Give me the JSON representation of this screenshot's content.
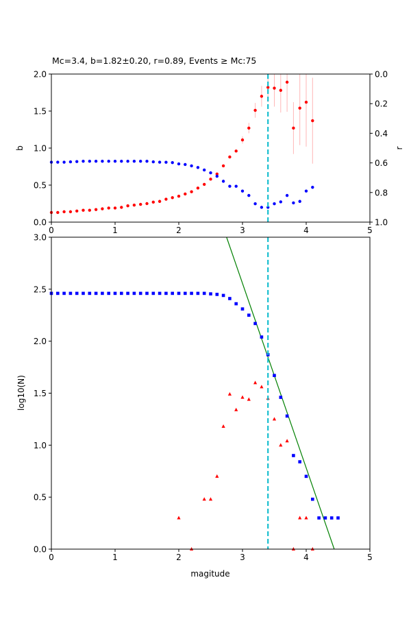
{
  "chart_data": [
    {
      "type": "scatter",
      "title": "Mc=3.4, b=1.82±0.20, r=0.89, Events ≥ Mc:75",
      "xlabel": "",
      "ylabel": "b",
      "ylabel_right": "r",
      "xlim": [
        0,
        5
      ],
      "ylim": [
        0,
        2
      ],
      "ylim_right": [
        1,
        0
      ],
      "right_axis_inverted": true,
      "x_ticks": [
        "0",
        "1",
        "2",
        "3",
        "4",
        "5"
      ],
      "y_ticks": [
        "0.0",
        "0.5",
        "1.0",
        "1.5",
        "2.0"
      ],
      "y_right_ticks": [
        "0.0",
        "0.2",
        "0.4",
        "0.6",
        "0.8",
        "1.0"
      ],
      "mc_line": {
        "x": 3.4,
        "color": "#17becf"
      },
      "series": [
        {
          "axis": "left",
          "color": "#ff0000",
          "marker": "circle",
          "error_color": "#ffb6b6",
          "points": [
            [
              0.0,
              0.13
            ],
            [
              0.1,
              0.13
            ],
            [
              0.2,
              0.14
            ],
            [
              0.3,
              0.14
            ],
            [
              0.4,
              0.15
            ],
            [
              0.5,
              0.16
            ],
            [
              0.6,
              0.16
            ],
            [
              0.7,
              0.17
            ],
            [
              0.8,
              0.18
            ],
            [
              0.9,
              0.19
            ],
            [
              1.0,
              0.19
            ],
            [
              1.1,
              0.2
            ],
            [
              1.2,
              0.22
            ],
            [
              1.3,
              0.23
            ],
            [
              1.4,
              0.24
            ],
            [
              1.5,
              0.25
            ],
            [
              1.6,
              0.27
            ],
            [
              1.7,
              0.28
            ],
            [
              1.8,
              0.31
            ],
            [
              1.9,
              0.33
            ],
            [
              2.0,
              0.35
            ],
            [
              2.1,
              0.38
            ],
            [
              2.2,
              0.41
            ],
            [
              2.3,
              0.46
            ],
            [
              2.4,
              0.51
            ],
            [
              2.5,
              0.58
            ],
            [
              2.6,
              0.65
            ],
            [
              2.7,
              0.76
            ],
            [
              2.8,
              0.88
            ],
            [
              2.9,
              0.96
            ],
            [
              3.0,
              1.11
            ],
            [
              3.1,
              1.27
            ],
            [
              3.2,
              1.51
            ],
            [
              3.3,
              1.7
            ],
            [
              3.4,
              1.82
            ],
            [
              3.5,
              1.81
            ],
            [
              3.6,
              1.78
            ],
            [
              3.7,
              1.89
            ],
            [
              3.8,
              1.27
            ],
            [
              3.9,
              1.54
            ],
            [
              4.0,
              1.62
            ],
            [
              4.1,
              1.37
            ]
          ],
          "errors": [
            [
              3.0,
              0.05
            ],
            [
              3.1,
              0.07
            ],
            [
              3.2,
              0.1
            ],
            [
              3.3,
              0.14
            ],
            [
              3.4,
              0.2
            ],
            [
              3.5,
              0.25
            ],
            [
              3.6,
              0.3
            ],
            [
              3.7,
              0.4
            ],
            [
              3.8,
              0.35
            ],
            [
              3.9,
              0.5
            ],
            [
              4.0,
              0.6
            ],
            [
              4.1,
              0.58
            ]
          ]
        },
        {
          "axis": "right",
          "color": "#0000ff",
          "marker": "circle",
          "points": [
            [
              0.0,
              0.595
            ],
            [
              0.1,
              0.595
            ],
            [
              0.2,
              0.595
            ],
            [
              0.3,
              0.593
            ],
            [
              0.4,
              0.591
            ],
            [
              0.5,
              0.589
            ],
            [
              0.6,
              0.589
            ],
            [
              0.7,
              0.589
            ],
            [
              0.8,
              0.589
            ],
            [
              0.9,
              0.589
            ],
            [
              1.0,
              0.589
            ],
            [
              1.1,
              0.589
            ],
            [
              1.2,
              0.589
            ],
            [
              1.3,
              0.589
            ],
            [
              1.4,
              0.589
            ],
            [
              1.5,
              0.589
            ],
            [
              1.6,
              0.593
            ],
            [
              1.7,
              0.595
            ],
            [
              1.8,
              0.596
            ],
            [
              1.9,
              0.598
            ],
            [
              2.0,
              0.607
            ],
            [
              2.1,
              0.611
            ],
            [
              2.2,
              0.62
            ],
            [
              2.3,
              0.631
            ],
            [
              2.4,
              0.648
            ],
            [
              2.5,
              0.667
            ],
            [
              2.6,
              0.69
            ],
            [
              2.7,
              0.724
            ],
            [
              2.8,
              0.758
            ],
            [
              2.9,
              0.758
            ],
            [
              3.0,
              0.79
            ],
            [
              3.1,
              0.82
            ],
            [
              3.2,
              0.876
            ],
            [
              3.3,
              0.9
            ],
            [
              3.4,
              0.9
            ],
            [
              3.5,
              0.876
            ],
            [
              3.6,
              0.863
            ],
            [
              3.7,
              0.82
            ],
            [
              3.8,
              0.87
            ],
            [
              3.9,
              0.86
            ],
            [
              4.0,
              0.79
            ],
            [
              4.1,
              0.765
            ]
          ]
        }
      ]
    },
    {
      "type": "scatter",
      "title": "",
      "xlabel": "magitude",
      "ylabel": "log10(N)",
      "xlim": [
        0,
        5
      ],
      "ylim": [
        0,
        3
      ],
      "x_ticks": [
        "0",
        "1",
        "2",
        "3",
        "4",
        "5"
      ],
      "y_ticks": [
        "0.0",
        "0.5",
        "1.0",
        "1.5",
        "2.0",
        "2.5",
        "3.0"
      ],
      "mc_line": {
        "x": 3.4,
        "color": "#17becf"
      },
      "fit_line": {
        "color": "#008000",
        "points": [
          [
            2.75,
            3.0
          ],
          [
            4.44,
            0.0
          ]
        ]
      },
      "series": [
        {
          "color": "#0000ff",
          "marker": "square",
          "points": [
            [
              0.0,
              2.46
            ],
            [
              0.1,
              2.46
            ],
            [
              0.2,
              2.46
            ],
            [
              0.3,
              2.46
            ],
            [
              0.4,
              2.46
            ],
            [
              0.5,
              2.46
            ],
            [
              0.6,
              2.46
            ],
            [
              0.7,
              2.46
            ],
            [
              0.8,
              2.46
            ],
            [
              0.9,
              2.46
            ],
            [
              1.0,
              2.46
            ],
            [
              1.1,
              2.46
            ],
            [
              1.2,
              2.46
            ],
            [
              1.3,
              2.46
            ],
            [
              1.4,
              2.46
            ],
            [
              1.5,
              2.46
            ],
            [
              1.6,
              2.46
            ],
            [
              1.7,
              2.46
            ],
            [
              1.8,
              2.46
            ],
            [
              1.9,
              2.46
            ],
            [
              2.0,
              2.46
            ],
            [
              2.1,
              2.46
            ],
            [
              2.2,
              2.46
            ],
            [
              2.3,
              2.46
            ],
            [
              2.4,
              2.46
            ],
            [
              2.5,
              2.455
            ],
            [
              2.6,
              2.45
            ],
            [
              2.7,
              2.44
            ],
            [
              2.8,
              2.41
            ],
            [
              2.9,
              2.36
            ],
            [
              3.0,
              2.31
            ],
            [
              3.1,
              2.25
            ],
            [
              3.2,
              2.17
            ],
            [
              3.3,
              2.04
            ],
            [
              3.4,
              1.87
            ],
            [
              3.5,
              1.67
            ],
            [
              3.6,
              1.46
            ],
            [
              3.7,
              1.28
            ],
            [
              3.8,
              0.9
            ],
            [
              3.9,
              0.84
            ],
            [
              4.0,
              0.7
            ],
            [
              4.1,
              0.48
            ],
            [
              4.2,
              0.3
            ],
            [
              4.3,
              0.3
            ],
            [
              4.4,
              0.3
            ],
            [
              4.5,
              0.3
            ]
          ]
        },
        {
          "color": "#ff0000",
          "marker": "triangle",
          "points": [
            [
              2.0,
              0.3
            ],
            [
              2.2,
              0.0
            ],
            [
              2.4,
              0.48
            ],
            [
              2.5,
              0.48
            ],
            [
              2.6,
              0.7
            ],
            [
              2.7,
              1.18
            ],
            [
              2.8,
              1.49
            ],
            [
              2.9,
              1.34
            ],
            [
              3.0,
              1.46
            ],
            [
              3.1,
              1.44
            ],
            [
              3.2,
              1.6
            ],
            [
              3.3,
              1.56
            ],
            [
              3.4,
              1.45
            ],
            [
              3.5,
              1.25
            ],
            [
              3.6,
              1.0
            ],
            [
              3.7,
              1.04
            ],
            [
              3.8,
              0.0
            ],
            [
              3.9,
              0.3
            ],
            [
              4.0,
              0.3
            ],
            [
              4.1,
              0.0
            ]
          ]
        }
      ]
    }
  ]
}
